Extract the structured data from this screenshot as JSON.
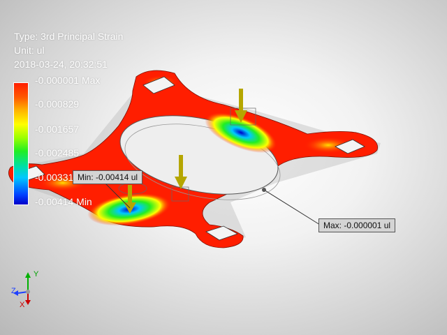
{
  "result": {
    "type_text": "Type: 3rd Principal Strain",
    "unit_text": "Unit: ul",
    "date_text": "2018-03-24, 20:32:51"
  },
  "legend": {
    "labels": [
      "-0.000001 Max",
      "-0.000829",
      "-0.001657",
      "-0.002485",
      "-0.003313",
      "-0.00414 Min"
    ],
    "colors": [
      "#ff1e00",
      "#ffb000",
      "#ffff00",
      "#22ee22",
      "#00c8ff",
      "#0000c8"
    ]
  },
  "probes": {
    "min_label": "Min: -0.00414 ul",
    "max_label": "Max: -0.000001 ul"
  },
  "triad": {
    "x_label": "X",
    "y_label": "Y",
    "z_label": "Z"
  },
  "colors": {
    "part_fill": "#ff1e00",
    "load_arrow": "#b5a600",
    "label_box": "#d4d4d4"
  }
}
